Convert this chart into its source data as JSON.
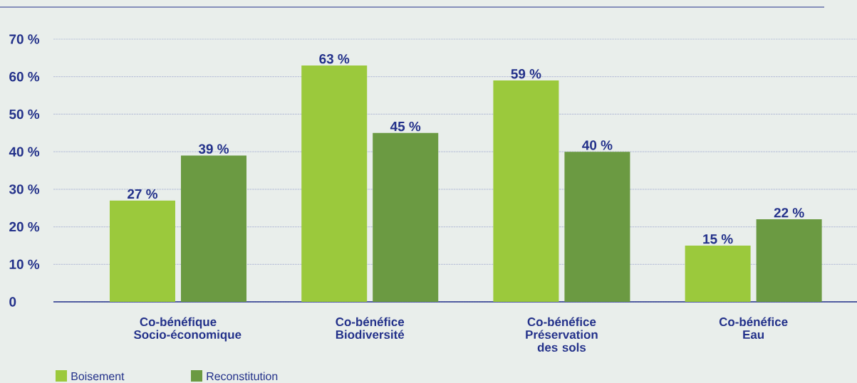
{
  "chart_data": {
    "type": "bar",
    "categories": [
      "Co-bénéfique Socio-économique",
      "Co-bénéfice Biodiversité",
      "Co-bénéfice Préservation des sols",
      "Co-bénéfice Eau"
    ],
    "series": [
      {
        "name": "Boisement",
        "color": "#9bc93c",
        "values": [
          27,
          63,
          59,
          15
        ],
        "value_labels": [
          "27 %",
          "63 %",
          "59 %",
          "15 %"
        ]
      },
      {
        "name": "Reconstitution",
        "color": "#6b9a42",
        "values": [
          39,
          45,
          40,
          22
        ],
        "value_labels": [
          "39 %",
          "45 %",
          "40 %",
          "22 %"
        ]
      }
    ],
    "ylim": [
      0,
      70
    ],
    "yticks": [
      0,
      {
        "value": 10,
        "label": "10 %"
      },
      {
        "value": 20,
        "label": "20 %"
      },
      {
        "value": 30,
        "label": "30 %"
      },
      {
        "value": 40,
        "label": "40 %"
      },
      {
        "value": 50,
        "label": "50 %"
      },
      {
        "value": 60,
        "label": "60 %"
      },
      {
        "value": 70,
        "label": "70 %"
      }
    ],
    "grid": "y",
    "legend": "bottom left"
  }
}
